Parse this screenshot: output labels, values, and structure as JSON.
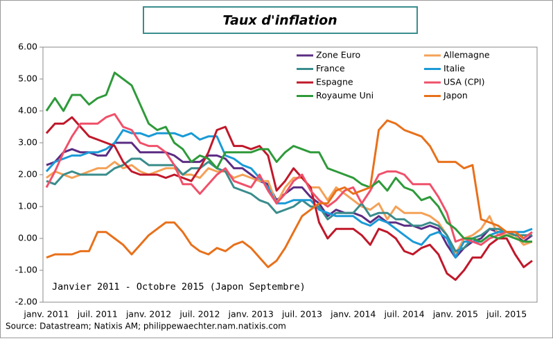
{
  "chart_data": {
    "type": "line",
    "title": "Taux d'inflation",
    "annotation": "Janvier 2011 - Octobre 2015 (Japon Septembre)",
    "source": "Source: Datastream; Natixis AM; philippewaechter.nam.natixis.com",
    "grid": false,
    "categories": [
      "janv. 2011",
      null,
      null,
      null,
      null,
      null,
      "juil. 2011",
      null,
      null,
      null,
      null,
      null,
      "janv. 2012",
      null,
      null,
      null,
      null,
      null,
      "juil. 2012",
      null,
      null,
      null,
      null,
      null,
      "janv. 2013",
      null,
      null,
      null,
      null,
      null,
      "juil. 2013",
      null,
      null,
      null,
      null,
      null,
      "janv. 2014",
      null,
      null,
      null,
      null,
      null,
      "juil. 2014",
      null,
      null,
      null,
      null,
      null,
      "janv. 2015",
      null,
      null,
      null,
      null,
      null,
      "juil. 2015",
      null,
      null,
      null
    ],
    "ylim": [
      -2,
      6
    ],
    "yticks": [
      {
        "value": -2,
        "label": "-2.00"
      },
      {
        "value": -1,
        "label": "-1.00"
      },
      {
        "value": 0,
        "label": "0.00"
      },
      {
        "value": 1,
        "label": "1.00"
      },
      {
        "value": 2,
        "label": "2.00"
      },
      {
        "value": 3,
        "label": "3.00"
      },
      {
        "value": 4,
        "label": "4.00"
      },
      {
        "value": 5,
        "label": "5.00"
      },
      {
        "value": 6,
        "label": "6.00"
      }
    ],
    "series": [
      {
        "name": "Zone Euro",
        "color": "#5b2c83",
        "values": [
          2.3,
          2.4,
          2.7,
          2.8,
          2.7,
          2.7,
          2.6,
          2.6,
          3.0,
          3.0,
          3.0,
          2.7,
          2.7,
          2.7,
          2.7,
          2.6,
          2.4,
          2.4,
          2.4,
          2.6,
          2.6,
          2.5,
          2.2,
          2.2,
          2.0,
          1.8,
          1.7,
          1.2,
          1.4,
          1.6,
          1.6,
          1.3,
          1.1,
          0.7,
          0.9,
          0.8,
          0.8,
          0.7,
          0.5,
          0.7,
          0.5,
          0.5,
          0.4,
          0.4,
          0.3,
          0.4,
          0.3,
          -0.2,
          -0.6,
          -0.3,
          -0.1,
          0.0,
          0.3,
          0.2,
          0.2,
          0.1,
          -0.1,
          0.1
        ]
      },
      {
        "name": "Allemagne",
        "color": "#f4a157",
        "values": [
          1.9,
          2.1,
          2.0,
          1.9,
          2.0,
          2.1,
          2.2,
          2.2,
          2.4,
          2.2,
          2.3,
          2.1,
          2.0,
          2.1,
          2.2,
          2.2,
          2.0,
          2.0,
          1.9,
          2.2,
          2.1,
          2.1,
          1.9,
          2.0,
          1.9,
          1.8,
          1.8,
          1.1,
          1.6,
          1.9,
          1.9,
          1.6,
          1.6,
          1.2,
          1.6,
          1.4,
          1.2,
          1.0,
          0.9,
          1.1,
          0.6,
          1.0,
          0.8,
          0.8,
          0.8,
          0.7,
          0.5,
          0.1,
          -0.5,
          0.0,
          0.1,
          0.3,
          0.7,
          0.1,
          0.1,
          0.1,
          -0.2,
          -0.1
        ]
      },
      {
        "name": "France",
        "color": "#3a8c8c",
        "values": [
          1.8,
          1.7,
          2.0,
          2.1,
          2.0,
          2.0,
          2.0,
          2.0,
          2.2,
          2.3,
          2.5,
          2.5,
          2.3,
          2.3,
          2.3,
          2.3,
          2.0,
          2.2,
          2.2,
          2.4,
          2.2,
          2.1,
          1.6,
          1.5,
          1.4,
          1.2,
          1.1,
          0.8,
          0.9,
          1.0,
          1.2,
          1.0,
          1.0,
          0.6,
          0.8,
          0.8,
          0.8,
          1.1,
          0.7,
          0.8,
          0.8,
          0.6,
          0.6,
          0.4,
          0.4,
          0.5,
          0.4,
          0.1,
          -0.4,
          -0.3,
          0.0,
          0.1,
          0.3,
          0.3,
          0.2,
          0.1,
          0.1,
          0.1
        ]
      },
      {
        "name": "Italie",
        "color": "#1a9ad6",
        "values": [
          2.1,
          2.4,
          2.5,
          2.6,
          2.6,
          2.7,
          2.7,
          2.8,
          3.0,
          3.4,
          3.3,
          3.3,
          3.2,
          3.3,
          3.3,
          3.3,
          3.2,
          3.3,
          3.1,
          3.2,
          3.2,
          2.6,
          2.5,
          2.3,
          2.2,
          1.9,
          1.6,
          1.1,
          1.1,
          1.2,
          1.2,
          1.2,
          0.9,
          0.8,
          0.7,
          0.7,
          0.7,
          0.5,
          0.4,
          0.6,
          0.5,
          0.3,
          0.1,
          -0.1,
          -0.2,
          0.1,
          0.2,
          0.0,
          -0.6,
          -0.1,
          -0.1,
          -0.1,
          0.1,
          0.2,
          0.2,
          0.2,
          0.2,
          0.3
        ]
      },
      {
        "name": "Espagne",
        "color": "#c0182a",
        "values": [
          3.3,
          3.6,
          3.6,
          3.8,
          3.5,
          3.2,
          3.1,
          3.0,
          2.9,
          2.4,
          2.1,
          2.0,
          2.0,
          2.0,
          1.9,
          2.0,
          1.9,
          1.8,
          2.2,
          2.7,
          3.4,
          3.5,
          2.9,
          2.9,
          2.8,
          2.9,
          2.6,
          1.5,
          1.8,
          2.2,
          1.9,
          1.6,
          0.5,
          0.0,
          0.3,
          0.3,
          0.3,
          0.1,
          -0.2,
          0.3,
          0.2,
          0.0,
          -0.4,
          -0.5,
          -0.3,
          -0.2,
          -0.5,
          -1.1,
          -1.3,
          -1.0,
          -0.6,
          -0.6,
          -0.2,
          0.0,
          0.0,
          -0.5,
          -0.9,
          -0.7
        ]
      },
      {
        "name": "USA (CPI)",
        "color": "#f0506a",
        "values": [
          1.6,
          2.1,
          2.7,
          3.2,
          3.6,
          3.6,
          3.6,
          3.8,
          3.9,
          3.5,
          3.4,
          3.0,
          2.9,
          2.9,
          2.7,
          2.3,
          1.7,
          1.7,
          1.4,
          1.7,
          2.0,
          2.2,
          1.8,
          1.7,
          1.6,
          2.0,
          1.5,
          1.1,
          1.4,
          1.8,
          2.0,
          1.5,
          1.2,
          1.0,
          1.2,
          1.5,
          1.6,
          1.1,
          1.5,
          2.0,
          2.1,
          2.1,
          2.0,
          1.7,
          1.7,
          1.7,
          1.3,
          0.8,
          -0.1,
          0.0,
          -0.1,
          -0.2,
          0.0,
          0.1,
          0.2,
          0.2,
          0.0,
          0.2
        ]
      },
      {
        "name": "Royaume Uni",
        "color": "#2e9a3a",
        "values": [
          4.0,
          4.4,
          4.0,
          4.5,
          4.5,
          4.2,
          4.4,
          4.5,
          5.2,
          5.0,
          4.8,
          4.2,
          3.6,
          3.4,
          3.5,
          3.0,
          2.8,
          2.4,
          2.6,
          2.5,
          2.2,
          2.7,
          2.7,
          2.7,
          2.7,
          2.8,
          2.8,
          2.4,
          2.7,
          2.9,
          2.8,
          2.7,
          2.7,
          2.2,
          2.1,
          2.0,
          1.9,
          1.7,
          1.6,
          1.8,
          1.5,
          1.9,
          1.6,
          1.5,
          1.2,
          1.3,
          1.0,
          0.5,
          0.3,
          0.0,
          0.0,
          -0.1,
          0.1,
          0.0,
          0.1,
          0.0,
          -0.1,
          -0.1
        ]
      },
      {
        "name": "Japon",
        "color": "#e8701a",
        "values": [
          -0.6,
          -0.5,
          -0.5,
          -0.5,
          -0.4,
          -0.4,
          0.2,
          0.2,
          0.0,
          -0.2,
          -0.5,
          -0.2,
          0.1,
          0.3,
          0.5,
          0.5,
          0.2,
          -0.2,
          -0.4,
          -0.5,
          -0.3,
          -0.4,
          -0.2,
          -0.1,
          -0.3,
          -0.6,
          -0.9,
          -0.7,
          -0.3,
          0.2,
          0.7,
          0.9,
          1.1,
          1.1,
          1.5,
          1.6,
          1.4,
          1.5,
          1.6,
          3.4,
          3.7,
          3.6,
          3.4,
          3.3,
          3.2,
          2.9,
          2.4,
          2.4,
          2.4,
          2.2,
          2.3,
          0.6,
          0.5,
          0.4,
          0.2,
          0.2,
          0.0,
          null
        ]
      }
    ]
  }
}
